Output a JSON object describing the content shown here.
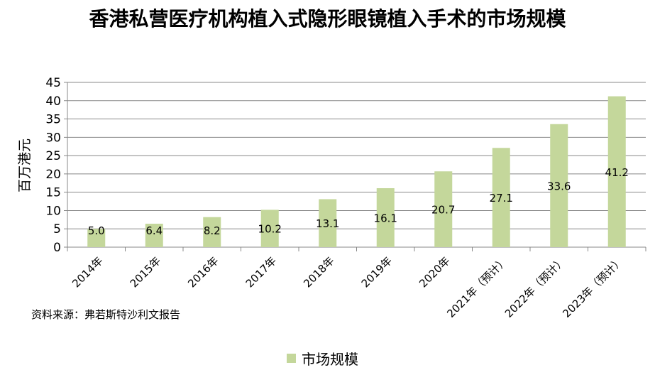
{
  "title": "香港私营医疗机构植入式隐形眼镜植入手术的市场规模",
  "source": "资料来源：弗若斯特沙利文报告",
  "colors": {
    "bar": "#c4d79b",
    "grid": "#888888",
    "axis": "#888888"
  },
  "chart_data": {
    "type": "bar",
    "title": "香港私营医疗机构植入式隐形眼镜植入手术的市场规模",
    "xlabel": "",
    "ylabel": "百万港元",
    "ylim": [
      0,
      45
    ],
    "yticks": [
      0,
      5,
      10,
      15,
      20,
      25,
      30,
      35,
      40,
      45
    ],
    "grid": true,
    "legend": "bottom-center",
    "categories": [
      "2014年",
      "2015年",
      "2016年",
      "2017年",
      "2018年",
      "2019年",
      "2020年",
      "2021年（预计）",
      "2022年（预计）",
      "2023年（预计）"
    ],
    "series": [
      {
        "name": "市场规模",
        "values": [
          5.0,
          6.4,
          8.2,
          10.2,
          13.1,
          16.1,
          20.7,
          27.1,
          33.6,
          41.2
        ],
        "labels": [
          "5.0",
          "6.4",
          "8.2",
          "10.2",
          "13.1",
          "16.1",
          "20.7",
          "27.1",
          "33.6",
          "41.2"
        ]
      }
    ]
  }
}
